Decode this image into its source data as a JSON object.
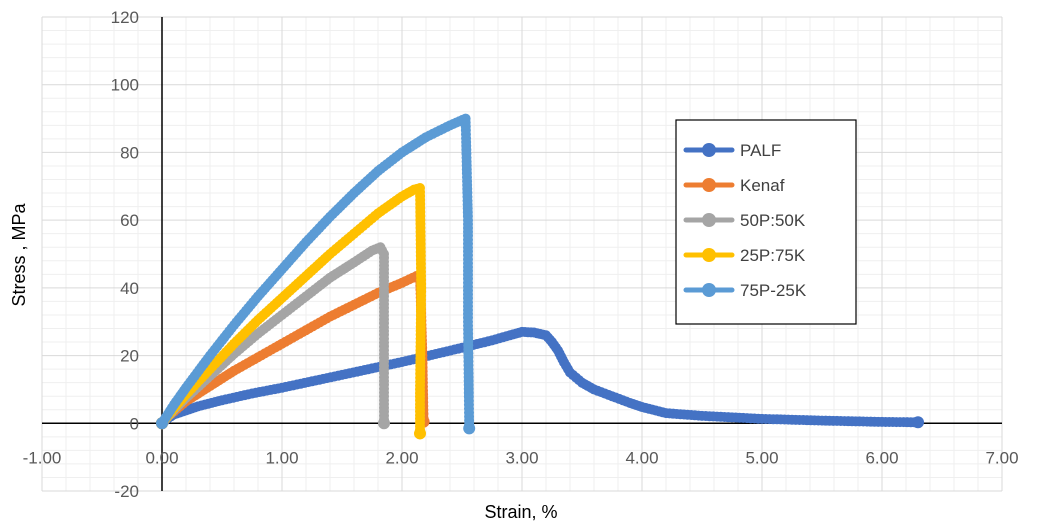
{
  "chart_data": {
    "type": "scatter",
    "xlabel": "Strain, %",
    "ylabel": "Stress , MPa",
    "xlim": [
      -1,
      7
    ],
    "ylim": [
      -20,
      120
    ],
    "x_major_step": 1,
    "y_major_step": 20,
    "x_minor_step": 0.2,
    "y_minor_step": 4,
    "x_tick_labels": [
      "-1.00",
      "0.00",
      "1.00",
      "2.00",
      "3.00",
      "4.00",
      "5.00",
      "6.00",
      "7.00"
    ],
    "y_tick_labels": [
      "-20",
      "0",
      "20",
      "40",
      "60",
      "80",
      "100",
      "120"
    ],
    "grid": true,
    "legend_position": "right",
    "series": [
      {
        "name": "PALF",
        "color": "#4472C4",
        "points": [
          [
            0,
            0
          ],
          [
            0.05,
            1.5
          ],
          [
            0.1,
            2.6
          ],
          [
            0.2,
            3.8
          ],
          [
            0.3,
            5
          ],
          [
            0.5,
            6.8
          ],
          [
            0.75,
            8.8
          ],
          [
            1.0,
            10.5
          ],
          [
            1.25,
            12.4
          ],
          [
            1.5,
            14.3
          ],
          [
            1.75,
            16.2
          ],
          [
            2.0,
            18.1
          ],
          [
            2.25,
            20.2
          ],
          [
            2.5,
            22.3
          ],
          [
            2.75,
            24.5
          ],
          [
            2.9,
            26
          ],
          [
            3.0,
            27
          ],
          [
            3.1,
            26.8
          ],
          [
            3.2,
            26
          ],
          [
            3.25,
            24
          ],
          [
            3.3,
            21.5
          ],
          [
            3.35,
            18
          ],
          [
            3.4,
            15
          ],
          [
            3.5,
            12
          ],
          [
            3.6,
            10
          ],
          [
            3.75,
            8
          ],
          [
            3.9,
            6
          ],
          [
            4.0,
            4.8
          ],
          [
            4.2,
            3
          ],
          [
            4.5,
            2.2
          ],
          [
            5.0,
            1.3
          ],
          [
            5.5,
            0.8
          ],
          [
            6.0,
            0.4
          ],
          [
            6.3,
            0.3
          ]
        ]
      },
      {
        "name": "Kenaf",
        "color": "#ED7D31",
        "points": [
          [
            0,
            0
          ],
          [
            0.05,
            2
          ],
          [
            0.1,
            3.5
          ],
          [
            0.2,
            6.5
          ],
          [
            0.4,
            11
          ],
          [
            0.6,
            15.5
          ],
          [
            0.8,
            19.5
          ],
          [
            1.0,
            23.5
          ],
          [
            1.2,
            27.5
          ],
          [
            1.4,
            31.5
          ],
          [
            1.6,
            35
          ],
          [
            1.8,
            38.5
          ],
          [
            2.0,
            41.5
          ],
          [
            2.15,
            44
          ],
          [
            2.17,
            20
          ],
          [
            2.18,
            0.5
          ]
        ]
      },
      {
        "name": "50P:50K",
        "color": "#A5A5A5",
        "points": [
          [
            0,
            0
          ],
          [
            0.1,
            4
          ],
          [
            0.2,
            7.5
          ],
          [
            0.4,
            14
          ],
          [
            0.6,
            20.5
          ],
          [
            0.8,
            26.5
          ],
          [
            1.0,
            32
          ],
          [
            1.2,
            37.5
          ],
          [
            1.4,
            43
          ],
          [
            1.6,
            47.5
          ],
          [
            1.75,
            51
          ],
          [
            1.82,
            52
          ],
          [
            1.85,
            50
          ],
          [
            1.85,
            25
          ],
          [
            1.85,
            0
          ]
        ]
      },
      {
        "name": "25P:75K",
        "color": "#FFC000",
        "points": [
          [
            0,
            0
          ],
          [
            0.1,
            4.5
          ],
          [
            0.2,
            8.5
          ],
          [
            0.4,
            16
          ],
          [
            0.6,
            23.5
          ],
          [
            0.8,
            30.5
          ],
          [
            1.0,
            37
          ],
          [
            1.2,
            43.5
          ],
          [
            1.4,
            50
          ],
          [
            1.6,
            56
          ],
          [
            1.8,
            62
          ],
          [
            2.0,
            67
          ],
          [
            2.1,
            69
          ],
          [
            2.15,
            69.5
          ],
          [
            2.16,
            40
          ],
          [
            2.15,
            10
          ],
          [
            2.15,
            -3
          ]
        ]
      },
      {
        "name": "75P-25K",
        "color": "#5B9BD5",
        "points": [
          [
            0,
            0
          ],
          [
            0.1,
            5.5
          ],
          [
            0.2,
            10.5
          ],
          [
            0.4,
            20
          ],
          [
            0.6,
            29
          ],
          [
            0.8,
            37.5
          ],
          [
            1.0,
            45.5
          ],
          [
            1.2,
            53.5
          ],
          [
            1.4,
            61
          ],
          [
            1.6,
            68
          ],
          [
            1.8,
            74.5
          ],
          [
            2.0,
            80
          ],
          [
            2.2,
            84.5
          ],
          [
            2.4,
            88
          ],
          [
            2.53,
            90
          ],
          [
            2.55,
            60
          ],
          [
            2.55,
            30
          ],
          [
            2.56,
            -1.5
          ]
        ]
      }
    ]
  }
}
